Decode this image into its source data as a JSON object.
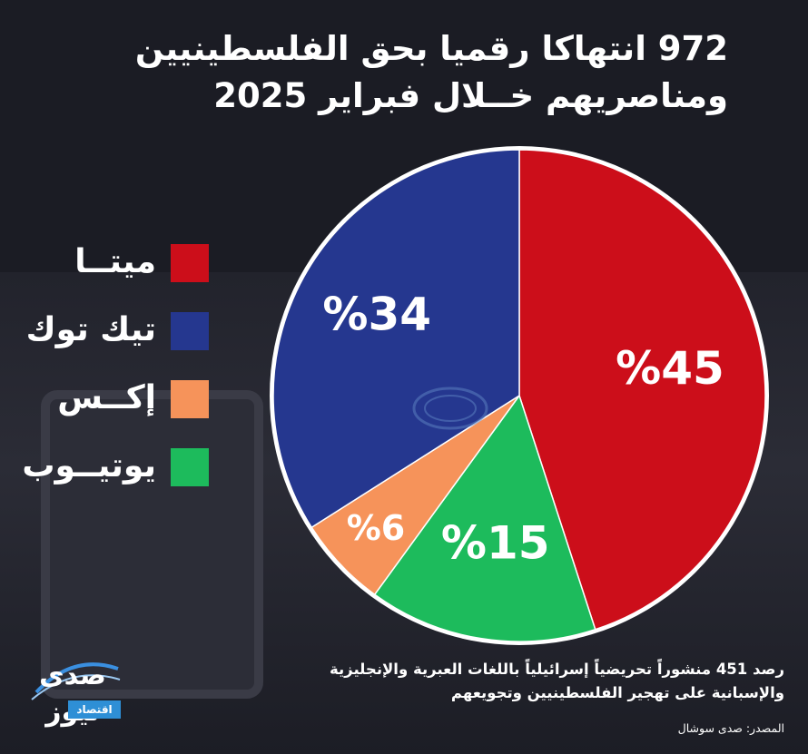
{
  "title": {
    "line1": "972 انتهاكا رقميا بحق الفلسطينيين",
    "line2": "ومناصريهم خــلال فبراير 2025"
  },
  "legend": [
    {
      "label": "ميتــا",
      "color": "#cc0e1a"
    },
    {
      "label": "تيك توك",
      "color": "#25378f"
    },
    {
      "label": "إكــس",
      "color": "#f6935a"
    },
    {
      "label": "يوتيــوب",
      "color": "#1dbb5c"
    }
  ],
  "chart_data": {
    "type": "pie",
    "categories": [
      "ميتا",
      "يوتيوب",
      "إكس",
      "تيك توك"
    ],
    "values": [
      45,
      15,
      6,
      34
    ],
    "labels": [
      "%45",
      "%15",
      "%6",
      "%34"
    ],
    "colors": [
      "#cc0e1a",
      "#1dbb5c",
      "#f6935a",
      "#25378f"
    ],
    "start": "top",
    "direction": "clockwise"
  },
  "footnote": {
    "line1": "رصد 451 منشوراً تحريضياً إسرائيلياً باللغات العبرية والإنجليزية",
    "line2": "والإسبانية على تهجير الفلسطينيين وتجويعهم"
  },
  "source": "المصدر: صدى سوشال",
  "logo": {
    "name": "صدى نيوز",
    "sub": "اقتصاد"
  }
}
